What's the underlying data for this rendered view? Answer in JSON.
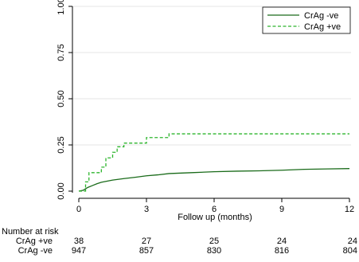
{
  "chart_data": {
    "type": "line",
    "xlabel": "Follow up (months)",
    "ylabel": "",
    "xlim": [
      0,
      12
    ],
    "ylim": [
      0,
      1
    ],
    "x_ticks": [
      0,
      3,
      6,
      9,
      12
    ],
    "y_ticks": [
      0.0,
      0.25,
      0.5,
      0.75,
      1.0
    ],
    "x_tick_labels": [
      "0",
      "3",
      "6",
      "9",
      "12"
    ],
    "y_tick_labels": [
      "0.00",
      "0.25",
      "0.50",
      "0.75",
      "1.00"
    ],
    "grid": "horizontal",
    "legend_position": "top-right",
    "series": [
      {
        "name": "CrAg -ve",
        "color": "#1a6b1a",
        "dash": "solid",
        "x": [
          0,
          0.2,
          0.4,
          0.6,
          0.8,
          1.0,
          1.5,
          2.0,
          2.5,
          3.0,
          3.5,
          4.0,
          5.0,
          6.0,
          7.0,
          8.0,
          9.0,
          10.0,
          11.0,
          12.0
        ],
        "y": [
          0.0,
          0.005,
          0.02,
          0.03,
          0.04,
          0.048,
          0.06,
          0.068,
          0.075,
          0.083,
          0.088,
          0.095,
          0.1,
          0.105,
          0.108,
          0.11,
          0.113,
          0.118,
          0.12,
          0.122
        ]
      },
      {
        "name": "CrAg +ve",
        "color": "#2db52d",
        "dash": "dashed",
        "steps": [
          [
            0,
            0.0
          ],
          [
            0.3,
            0.05
          ],
          [
            0.45,
            0.1
          ],
          [
            1.0,
            0.13
          ],
          [
            1.2,
            0.18
          ],
          [
            1.5,
            0.21
          ],
          [
            1.7,
            0.24
          ],
          [
            2.0,
            0.26
          ],
          [
            3.0,
            0.29
          ],
          [
            4.0,
            0.31
          ],
          [
            12.0,
            0.31
          ]
        ]
      }
    ],
    "risk_table": {
      "title": "Number at risk",
      "rows": [
        {
          "label": "CrAg +ve",
          "values": [
            "38",
            "27",
            "25",
            "24",
            "24"
          ]
        },
        {
          "label": "CrAg -ve",
          "values": [
            "947",
            "857",
            "830",
            "816",
            "804"
          ]
        }
      ]
    }
  }
}
